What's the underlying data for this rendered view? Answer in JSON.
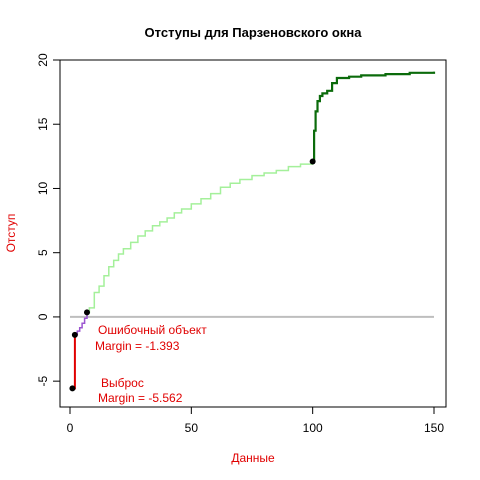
{
  "chart_data": {
    "type": "line",
    "title": "Отступы для Парзеновского окна",
    "xlabel": "Данные",
    "ylabel": "Отступ",
    "xlim": [
      0,
      150
    ],
    "ylim": [
      -6,
      20
    ],
    "xticks": [
      0,
      50,
      100,
      150
    ],
    "yticks": [
      -5,
      0,
      5,
      10,
      15,
      20
    ],
    "grid": false,
    "colors": {
      "outlier": "#e00000",
      "error": "#9b55d0",
      "normal": "#a4f09a",
      "reference": "#0b6b0b",
      "baseline": "#bebebe",
      "labels": "#e00000",
      "points": "#000000"
    },
    "baseline": 0,
    "series": [
      {
        "role": "outlier",
        "points": [
          [
            1,
            -5.562
          ],
          [
            2,
            -1.393
          ]
        ]
      },
      {
        "role": "error",
        "points": [
          [
            2,
            -1.393
          ],
          [
            3,
            -1.1
          ],
          [
            4,
            -0.85
          ],
          [
            5,
            -0.5
          ],
          [
            6,
            -0.1
          ],
          [
            7,
            0.35
          ]
        ]
      },
      {
        "role": "normal",
        "points": [
          [
            7,
            0.35
          ],
          [
            8,
            0.7
          ],
          [
            10,
            1.9
          ],
          [
            12,
            2.4
          ],
          [
            14,
            3.2
          ],
          [
            16,
            3.9
          ],
          [
            18,
            4.4
          ],
          [
            20,
            4.9
          ],
          [
            22,
            5.3
          ],
          [
            25,
            5.8
          ],
          [
            28,
            6.3
          ],
          [
            31,
            6.7
          ],
          [
            34,
            7.1
          ],
          [
            37,
            7.4
          ],
          [
            40,
            7.7
          ],
          [
            43,
            8.1
          ],
          [
            46,
            8.4
          ],
          [
            50,
            8.8
          ],
          [
            54,
            9.2
          ],
          [
            58,
            9.6
          ],
          [
            62,
            10.1
          ],
          [
            66,
            10.4
          ],
          [
            70,
            10.7
          ],
          [
            75,
            11.0
          ],
          [
            80,
            11.2
          ],
          [
            85,
            11.4
          ],
          [
            90,
            11.7
          ],
          [
            95,
            11.9
          ],
          [
            100,
            12.1
          ]
        ]
      },
      {
        "role": "reference",
        "points": [
          [
            100,
            12.1
          ],
          [
            100.6,
            14.5
          ],
          [
            101.2,
            16.0
          ],
          [
            102,
            16.8
          ],
          [
            103,
            17.2
          ],
          [
            104,
            17.4
          ],
          [
            106,
            17.6
          ],
          [
            108,
            18.2
          ],
          [
            110,
            18.6
          ],
          [
            115,
            18.7
          ],
          [
            120,
            18.8
          ],
          [
            130,
            18.9
          ],
          [
            140,
            19.0
          ],
          [
            150,
            19.1
          ]
        ]
      }
    ],
    "markers": [
      {
        "x": 1,
        "y": -5.562
      },
      {
        "x": 2,
        "y": -1.393
      },
      {
        "x": 7,
        "y": 0.35
      },
      {
        "x": 100,
        "y": 12.1
      }
    ],
    "annotations": [
      {
        "id": "error",
        "title": "Ошибочный объект",
        "margin": "Margin = -1.393"
      },
      {
        "id": "outlier",
        "title": "Выброс",
        "margin": "Margin = -5.562"
      }
    ]
  }
}
